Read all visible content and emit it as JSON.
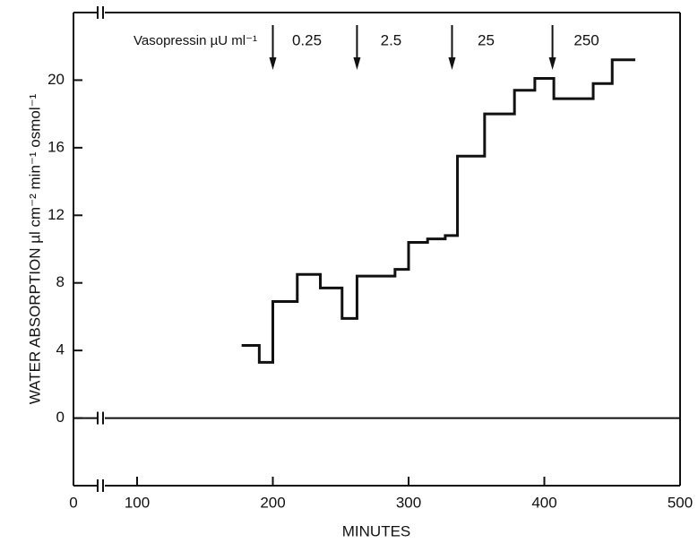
{
  "chart_data": {
    "type": "step",
    "x_label": "MINUTES",
    "y_label": "WATER ABSORPTION µl cm⁻² min⁻¹ osmol⁻¹",
    "annotation": "Vasopressin µU ml⁻¹",
    "arrows": [
      {
        "x": 200,
        "label": "0.25"
      },
      {
        "x": 262,
        "label": "2.5"
      },
      {
        "x": 332,
        "label": "25"
      },
      {
        "x": 406,
        "label": "250"
      }
    ],
    "x": [
      177,
      190,
      200,
      218,
      235,
      251,
      262,
      290,
      300,
      314,
      327,
      336,
      356,
      378,
      393,
      407,
      436,
      450,
      467
    ],
    "values": [
      4.3,
      3.3,
      6.9,
      8.5,
      7.7,
      5.9,
      8.4,
      8.8,
      10.4,
      10.6,
      10.8,
      15.5,
      18.0,
      19.4,
      20.1,
      18.9,
      19.8,
      21.2,
      21.2
    ],
    "color": "#111111",
    "xlim": [
      0,
      500
    ],
    "xticks": [
      0,
      100,
      200,
      300,
      400,
      500
    ],
    "x_axis_break": true,
    "ylim": [
      -4,
      24
    ],
    "yticks": [
      0,
      4,
      8,
      12,
      16,
      20
    ]
  }
}
